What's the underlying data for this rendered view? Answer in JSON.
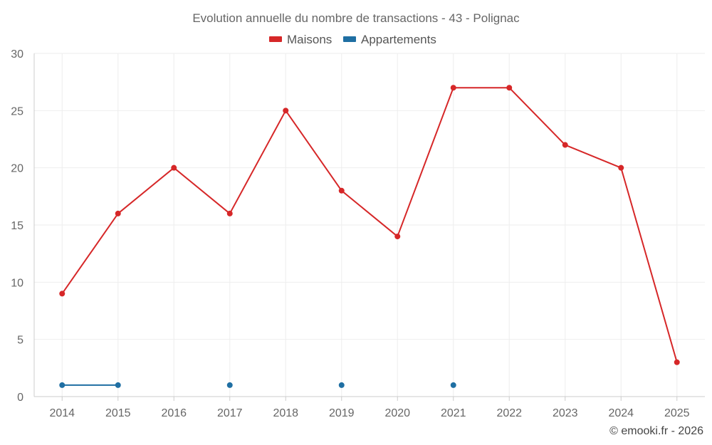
{
  "chart_data": {
    "type": "line",
    "title": "Evolution annuelle du nombre de transactions - 43 - Polignac",
    "x": [
      "2014",
      "2015",
      "2016",
      "2017",
      "2018",
      "2019",
      "2020",
      "2021",
      "2022",
      "2023",
      "2024",
      "2025"
    ],
    "series": [
      {
        "name": "Maisons",
        "color": "#d62728",
        "values": [
          9,
          16,
          20,
          16,
          25,
          18,
          14,
          27,
          27,
          22,
          20,
          3
        ]
      },
      {
        "name": "Appartements",
        "color": "#1f6fa3",
        "values": [
          1,
          1,
          null,
          1,
          null,
          1,
          null,
          1,
          null,
          null,
          null,
          null
        ]
      }
    ],
    "ylim": [
      0,
      30
    ],
    "yticks": [
      0,
      5,
      10,
      15,
      20,
      25,
      30
    ],
    "xlabel": "",
    "ylabel": "",
    "grid": true,
    "legend": "top-center"
  },
  "credit": "© emooki.fr - 2026"
}
